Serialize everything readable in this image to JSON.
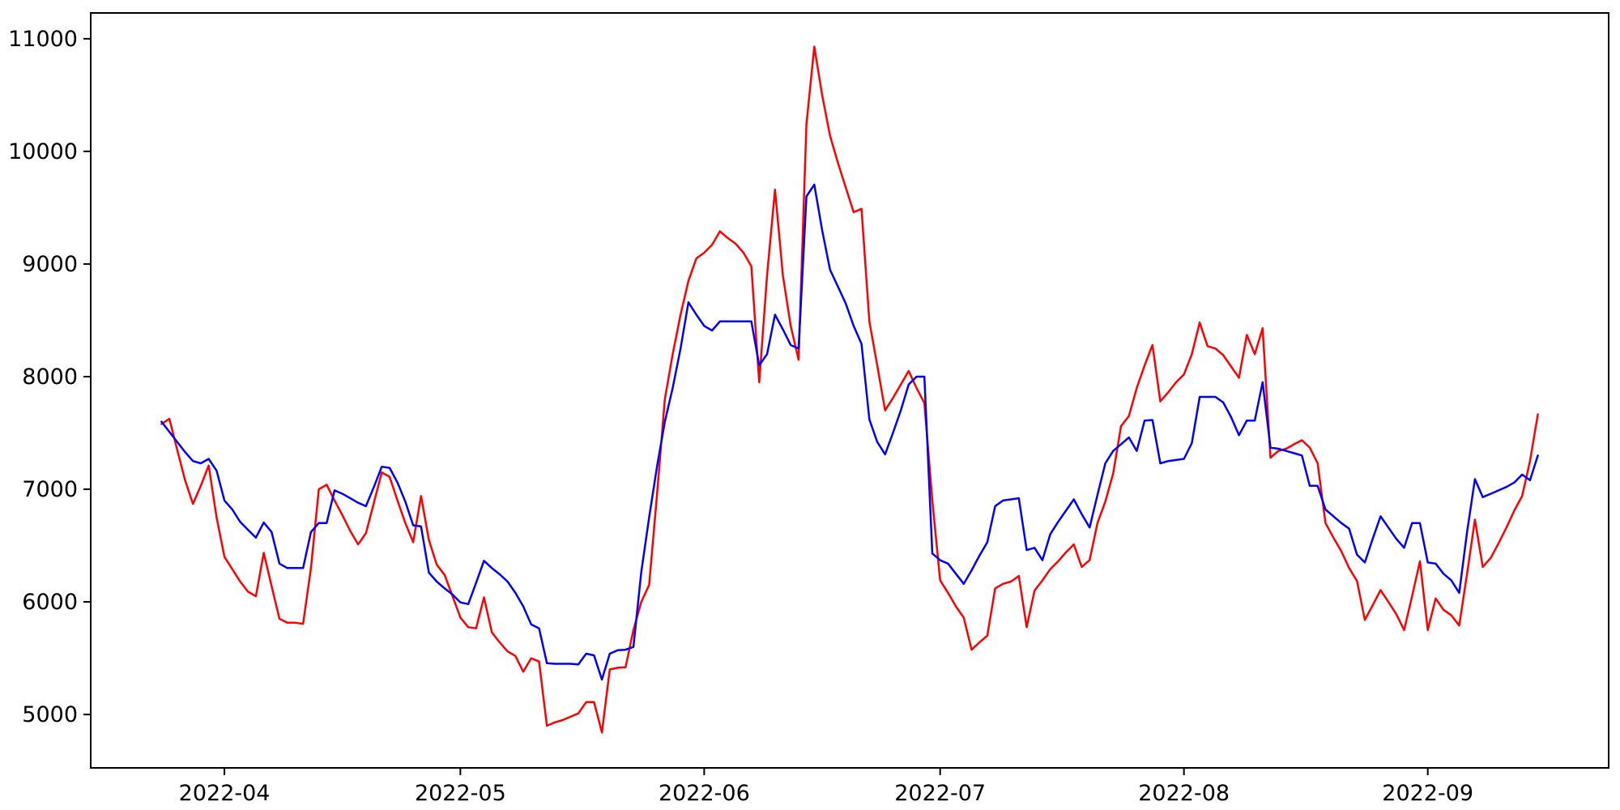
{
  "chart_data": {
    "type": "line",
    "title": "",
    "xlabel": "",
    "ylabel": "",
    "grid": false,
    "legend_position": "none",
    "background_color": "#ffffff",
    "axis_color": "#000000",
    "x_axis": {
      "tick_labels": [
        "2022-04",
        "2022-05",
        "2022-06",
        "2022-07",
        "2022-08",
        "2022-09"
      ],
      "tick_dates": [
        "2022-04-01",
        "2022-05-01",
        "2022-06-01",
        "2022-07-01",
        "2022-08-01",
        "2022-09-01"
      ],
      "range": [
        "2022-03-15",
        "2022-09-24"
      ]
    },
    "y_axis": {
      "tick_labels": [
        "5000",
        "6000",
        "7000",
        "8000",
        "9000",
        "10000",
        "11000"
      ],
      "ticks": [
        5000,
        6000,
        7000,
        8000,
        9000,
        10000,
        11000
      ],
      "range": [
        4526,
        11229
      ]
    },
    "dates": [
      "2022-03-24",
      "2022-03-25",
      "2022-03-26",
      "2022-03-27",
      "2022-03-28",
      "2022-03-29",
      "2022-03-30",
      "2022-03-31",
      "2022-04-01",
      "2022-04-02",
      "2022-04-03",
      "2022-04-04",
      "2022-04-05",
      "2022-04-06",
      "2022-04-07",
      "2022-04-08",
      "2022-04-09",
      "2022-04-10",
      "2022-04-11",
      "2022-04-12",
      "2022-04-13",
      "2022-04-14",
      "2022-04-15",
      "2022-04-16",
      "2022-04-17",
      "2022-04-18",
      "2022-04-19",
      "2022-04-20",
      "2022-04-21",
      "2022-04-22",
      "2022-04-23",
      "2022-04-24",
      "2022-04-25",
      "2022-04-26",
      "2022-04-27",
      "2022-04-28",
      "2022-04-29",
      "2022-04-30",
      "2022-05-01",
      "2022-05-02",
      "2022-05-03",
      "2022-05-04",
      "2022-05-05",
      "2022-05-06",
      "2022-05-07",
      "2022-05-08",
      "2022-05-09",
      "2022-05-10",
      "2022-05-11",
      "2022-05-12",
      "2022-05-13",
      "2022-05-14",
      "2022-05-15",
      "2022-05-16",
      "2022-05-17",
      "2022-05-18",
      "2022-05-19",
      "2022-05-20",
      "2022-05-21",
      "2022-05-22",
      "2022-05-23",
      "2022-05-24",
      "2022-05-25",
      "2022-05-26",
      "2022-05-27",
      "2022-05-28",
      "2022-05-29",
      "2022-05-30",
      "2022-05-31",
      "2022-06-01",
      "2022-06-02",
      "2022-06-03",
      "2022-06-04",
      "2022-06-05",
      "2022-06-06",
      "2022-06-07",
      "2022-06-08",
      "2022-06-09",
      "2022-06-10",
      "2022-06-11",
      "2022-06-12",
      "2022-06-13",
      "2022-06-14",
      "2022-06-15",
      "2022-06-16",
      "2022-06-17",
      "2022-06-18",
      "2022-06-19",
      "2022-06-20",
      "2022-06-21",
      "2022-06-22",
      "2022-06-23",
      "2022-06-24",
      "2022-06-25",
      "2022-06-26",
      "2022-06-27",
      "2022-06-28",
      "2022-06-29",
      "2022-06-30",
      "2022-07-01",
      "2022-07-02",
      "2022-07-03",
      "2022-07-04",
      "2022-07-05",
      "2022-07-06",
      "2022-07-07",
      "2022-07-08",
      "2022-07-09",
      "2022-07-10",
      "2022-07-11",
      "2022-07-12",
      "2022-07-13",
      "2022-07-14",
      "2022-07-15",
      "2022-07-16",
      "2022-07-17",
      "2022-07-18",
      "2022-07-19",
      "2022-07-20",
      "2022-07-21",
      "2022-07-22",
      "2022-07-23",
      "2022-07-24",
      "2022-07-25",
      "2022-07-26",
      "2022-07-27",
      "2022-07-28",
      "2022-07-29",
      "2022-07-30",
      "2022-07-31",
      "2022-08-01",
      "2022-08-02",
      "2022-08-03",
      "2022-08-04",
      "2022-08-05",
      "2022-08-06",
      "2022-08-07",
      "2022-08-08",
      "2022-08-09",
      "2022-08-10",
      "2022-08-11",
      "2022-08-12",
      "2022-08-13",
      "2022-08-14",
      "2022-08-15",
      "2022-08-16",
      "2022-08-17",
      "2022-08-18",
      "2022-08-19",
      "2022-08-20",
      "2022-08-21",
      "2022-08-22",
      "2022-08-23",
      "2022-08-24",
      "2022-08-25",
      "2022-08-26",
      "2022-08-27",
      "2022-08-28",
      "2022-08-29",
      "2022-08-30",
      "2022-08-31",
      "2022-09-01",
      "2022-09-02",
      "2022-09-03",
      "2022-09-04",
      "2022-09-05",
      "2022-09-06",
      "2022-09-07",
      "2022-09-08",
      "2022-09-09",
      "2022-09-10",
      "2022-09-11",
      "2022-09-12",
      "2022-09-13",
      "2022-09-14",
      "2022-09-15"
    ],
    "series": [
      {
        "name": "red-series",
        "color": "#ff0000",
        "line_width": 2.5,
        "values": [
          7580,
          7625,
          7350,
          7080,
          6870,
          7030,
          7210,
          6750,
          6400,
          6290,
          6180,
          6090,
          6050,
          6435,
          6140,
          5850,
          5815,
          5815,
          5805,
          6300,
          7000,
          7040,
          6900,
          6770,
          6630,
          6510,
          6610,
          6880,
          7150,
          7110,
          6900,
          6700,
          6530,
          6940,
          6550,
          6330,
          6240,
          6050,
          5860,
          5775,
          5765,
          6040,
          5730,
          5640,
          5560,
          5520,
          5380,
          5500,
          5470,
          4900,
          4930,
          4950,
          4980,
          5010,
          5110,
          5110,
          4840,
          5400,
          5415,
          5420,
          5750,
          6000,
          6150,
          6950,
          7800,
          8200,
          8550,
          8850,
          9050,
          9100,
          9170,
          9290,
          9230,
          9180,
          9100,
          8980,
          7950,
          8900,
          9660,
          8900,
          8450,
          8150,
          10240,
          10930,
          10500,
          10140,
          9900,
          9680,
          9460,
          9490,
          8490,
          8100,
          7700,
          7810,
          7930,
          8050,
          7900,
          7765,
          6900,
          6190,
          6080,
          5960,
          5860,
          5575,
          5640,
          5700,
          6120,
          6160,
          6180,
          6230,
          5775,
          6100,
          6190,
          6290,
          6360,
          6440,
          6510,
          6310,
          6370,
          6700,
          6890,
          7140,
          7560,
          7650,
          7900,
          8100,
          8280,
          7780,
          7860,
          7950,
          8020,
          8200,
          8480,
          8270,
          8250,
          8190,
          8090,
          7990,
          8370,
          8200,
          8430,
          7280,
          7340,
          7360,
          7400,
          7435,
          7370,
          7230,
          6700,
          6570,
          6450,
          6300,
          6185,
          5840,
          5970,
          6105,
          6000,
          5890,
          5750,
          6050,
          6360,
          5750,
          6030,
          5930,
          5880,
          5790,
          6250,
          6730,
          6310,
          6390,
          6520,
          6660,
          6810,
          6940,
          7250,
          7665
        ]
      },
      {
        "name": "blue-series",
        "color": "#0000ff",
        "line_width": 2.5,
        "values": [
          7600,
          7510,
          7420,
          7330,
          7250,
          7230,
          7270,
          7165,
          6900,
          6820,
          6710,
          6640,
          6570,
          6705,
          6620,
          6340,
          6300,
          6300,
          6300,
          6620,
          6700,
          6700,
          6990,
          6960,
          6920,
          6880,
          6850,
          7020,
          7200,
          7190,
          7060,
          6890,
          6680,
          6670,
          6260,
          6180,
          6120,
          6065,
          5995,
          5980,
          6170,
          6365,
          6300,
          6245,
          6180,
          6080,
          5960,
          5800,
          5765,
          5455,
          5450,
          5450,
          5450,
          5445,
          5540,
          5525,
          5310,
          5540,
          5570,
          5575,
          5600,
          6265,
          6750,
          7200,
          7600,
          7900,
          8250,
          8660,
          8550,
          8450,
          8410,
          8490,
          8490,
          8490,
          8490,
          8490,
          8100,
          8200,
          8550,
          8420,
          8280,
          8250,
          9600,
          9705,
          9300,
          8950,
          8800,
          8650,
          8450,
          8290,
          7620,
          7420,
          7310,
          7500,
          7700,
          7930,
          8000,
          8000,
          6430,
          6370,
          6340,
          6250,
          6160,
          6280,
          6410,
          6530,
          6850,
          6900,
          6910,
          6920,
          6460,
          6480,
          6370,
          6600,
          6710,
          6810,
          6910,
          6780,
          6660,
          6950,
          7230,
          7340,
          7400,
          7460,
          7340,
          7610,
          7615,
          7230,
          7250,
          7260,
          7270,
          7410,
          7820,
          7820,
          7820,
          7770,
          7640,
          7480,
          7610,
          7610,
          7950,
          7370,
          7360,
          7340,
          7320,
          7300,
          7030,
          7030,
          6820,
          6760,
          6700,
          6650,
          6420,
          6350,
          6560,
          6760,
          6660,
          6560,
          6480,
          6700,
          6700,
          6350,
          6340,
          6250,
          6190,
          6080,
          6620,
          7090,
          6930,
          6960,
          6990,
          7020,
          7060,
          7130,
          7080,
          7300
        ]
      }
    ]
  }
}
